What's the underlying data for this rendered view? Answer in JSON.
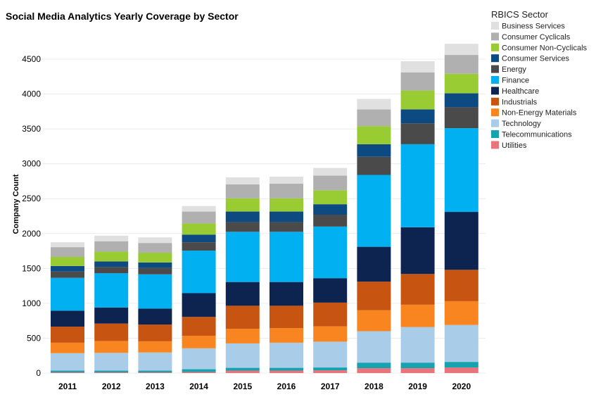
{
  "chart_data": {
    "type": "bar",
    "stacked": true,
    "title": "Social Media Analytics Yearly Coverage by Sector",
    "xlabel": "",
    "ylabel": "Company Count",
    "ylim": [
      0,
      4800
    ],
    "yticks": [
      0,
      500,
      1000,
      1500,
      2000,
      2500,
      3000,
      3500,
      4000,
      4500
    ],
    "grid": true,
    "legend_title": "RBICS Sector",
    "legend_position": "right",
    "categories": [
      "2011",
      "2012",
      "2013",
      "2014",
      "2015",
      "2016",
      "2017",
      "2018",
      "2019",
      "2020"
    ],
    "series": [
      {
        "name": "Utilities",
        "color": "#e8747c",
        "values": [
          10,
          10,
          10,
          15,
          35,
          35,
          40,
          70,
          70,
          80
        ]
      },
      {
        "name": "Telecommunications",
        "color": "#17a2b0",
        "values": [
          25,
          25,
          25,
          40,
          40,
          40,
          40,
          80,
          80,
          80
        ]
      },
      {
        "name": "Technology",
        "color": "#a9cce8",
        "values": [
          250,
          255,
          260,
          300,
          350,
          360,
          370,
          450,
          510,
          530
        ]
      },
      {
        "name": "Non-Energy Materials",
        "color": "#f8851f",
        "values": [
          150,
          170,
          160,
          180,
          210,
          210,
          220,
          300,
          320,
          340
        ]
      },
      {
        "name": "Industrials",
        "color": "#c85412",
        "values": [
          230,
          250,
          240,
          270,
          330,
          320,
          340,
          410,
          440,
          450
        ]
      },
      {
        "name": "Healthcare",
        "color": "#0d2350",
        "values": [
          230,
          230,
          230,
          340,
          340,
          340,
          350,
          500,
          670,
          830
        ]
      },
      {
        "name": "Finance",
        "color": "#00b0f0",
        "values": [
          470,
          490,
          490,
          610,
          720,
          720,
          740,
          1030,
          1190,
          1200
        ]
      },
      {
        "name": "Energy",
        "color": "#4a4a4a",
        "values": [
          90,
          90,
          90,
          120,
          140,
          140,
          170,
          260,
          300,
          300
        ]
      },
      {
        "name": "Consumer Services",
        "color": "#0e4a82",
        "values": [
          80,
          80,
          80,
          110,
          150,
          150,
          150,
          180,
          200,
          200
        ]
      },
      {
        "name": "Consumer Non-Cyclicals",
        "color": "#99cc33",
        "values": [
          130,
          140,
          140,
          160,
          190,
          190,
          200,
          260,
          270,
          280
        ]
      },
      {
        "name": "Consumer Cyclicals",
        "color": "#b0b0b0",
        "values": [
          140,
          150,
          140,
          170,
          200,
          210,
          210,
          240,
          260,
          270
        ]
      },
      {
        "name": "Business Services",
        "color": "#e0e0e0",
        "values": [
          70,
          80,
          80,
          80,
          100,
          100,
          110,
          150,
          160,
          160
        ]
      }
    ]
  }
}
